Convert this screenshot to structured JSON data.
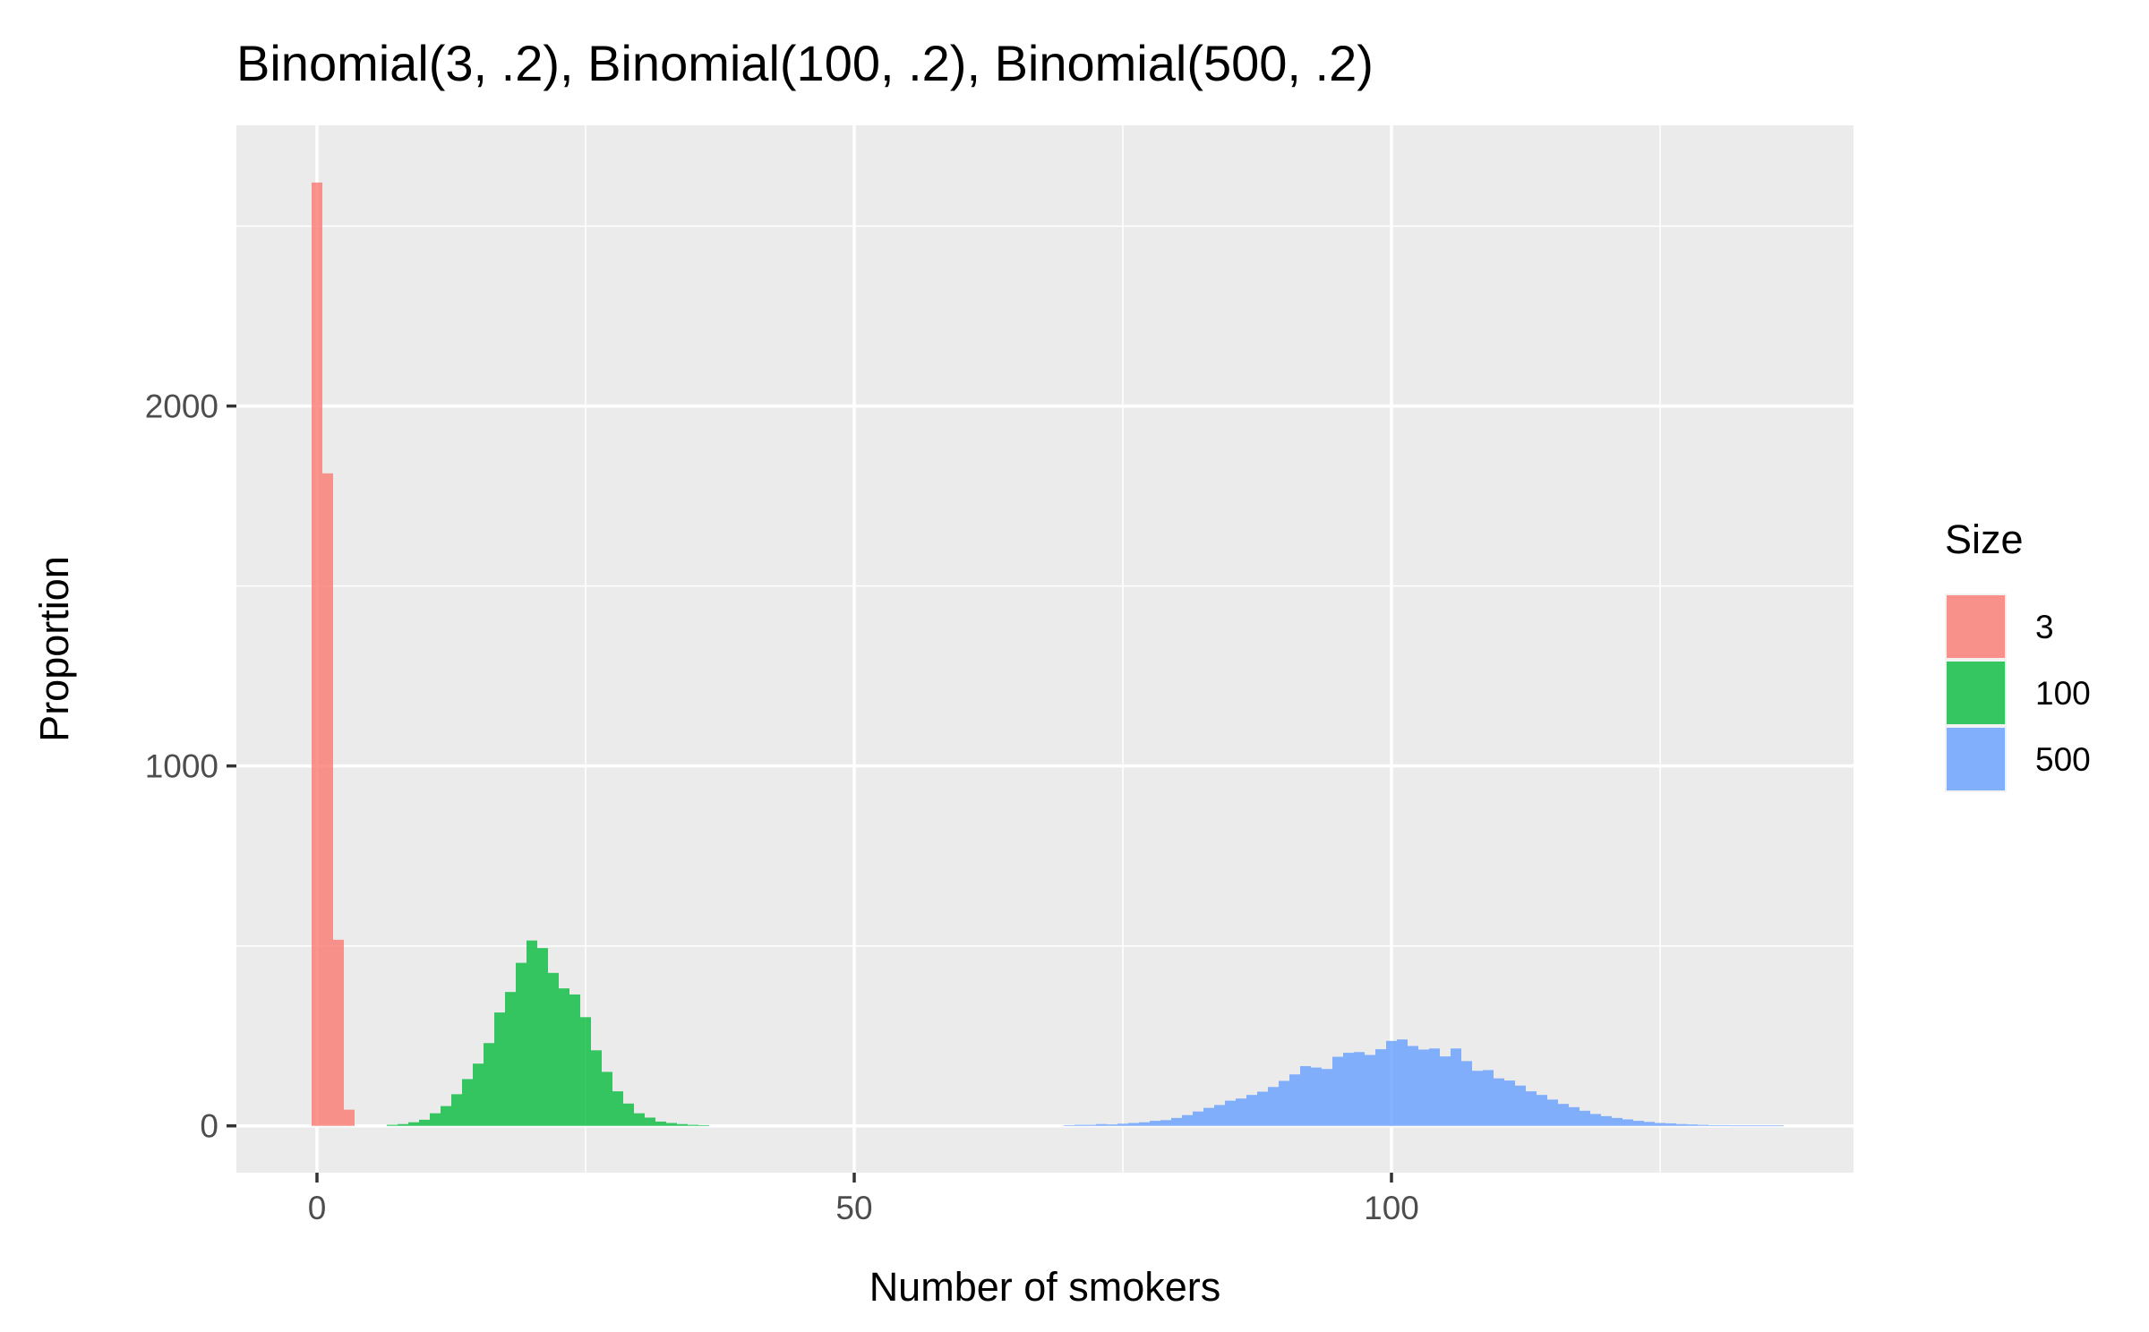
{
  "chart_data": {
    "type": "bar",
    "title": "Binomial(3, .2), Binomial(100, .2), Binomial(500, .2)",
    "xlabel": "Number of smokers",
    "ylabel": "Proportion",
    "xlim": [
      -7.5,
      143
    ],
    "ylim": [
      -130,
      2780
    ],
    "x_ticks": [
      0,
      50,
      100
    ],
    "x_tick_labels": [
      "0",
      "50",
      "100"
    ],
    "y_ticks": [
      0,
      1000,
      2000
    ],
    "y_tick_labels": [
      "0",
      "1000",
      "2000"
    ],
    "grid": true,
    "bin_width": 1,
    "legend": {
      "title": "Size",
      "placement": "right",
      "entries": [
        "3",
        "100",
        "500"
      ]
    },
    "series": [
      {
        "name": "3",
        "color": "#F8766D",
        "x": [
          0,
          1,
          2,
          3
        ],
        "values": [
          2621,
          1813,
          517,
          45
        ]
      },
      {
        "name": "100",
        "color": "#00BA38",
        "x": [
          7,
          8,
          9,
          10,
          11,
          12,
          13,
          14,
          15,
          16,
          17,
          18,
          19,
          20,
          21,
          22,
          23,
          24,
          25,
          26,
          27,
          28,
          29,
          30,
          31,
          32,
          33,
          34,
          35,
          36
        ],
        "values": [
          3,
          5,
          10,
          17,
          35,
          55,
          88,
          130,
          173,
          230,
          315,
          372,
          453,
          515,
          494,
          425,
          382,
          365,
          302,
          210,
          150,
          96,
          62,
          35,
          23,
          12,
          8,
          5,
          3,
          2
        ]
      },
      {
        "name": "500",
        "color": "#619CFF",
        "x": [
          70,
          71,
          72,
          73,
          74,
          75,
          76,
          77,
          78,
          79,
          80,
          81,
          82,
          83,
          84,
          85,
          86,
          87,
          88,
          89,
          90,
          91,
          92,
          93,
          94,
          95,
          96,
          97,
          98,
          99,
          100,
          101,
          102,
          103,
          104,
          105,
          106,
          107,
          108,
          109,
          110,
          111,
          112,
          113,
          114,
          115,
          116,
          117,
          118,
          119,
          120,
          121,
          122,
          123,
          124,
          125,
          126,
          127,
          128,
          129,
          130,
          131,
          132,
          133,
          134,
          135,
          136
        ],
        "values": [
          2,
          3,
          3,
          5,
          4,
          6,
          8,
          10,
          14,
          16,
          22,
          30,
          40,
          50,
          58,
          70,
          76,
          86,
          95,
          108,
          125,
          143,
          166,
          162,
          158,
          192,
          203,
          205,
          197,
          213,
          236,
          240,
          222,
          212,
          215,
          193,
          215,
          180,
          153,
          155,
          132,
          126,
          112,
          96,
          86,
          73,
          61,
          52,
          42,
          33,
          27,
          22,
          18,
          14,
          11,
          8,
          7,
          5,
          4,
          3,
          2,
          2,
          1,
          1,
          1,
          1,
          1
        ]
      }
    ]
  }
}
